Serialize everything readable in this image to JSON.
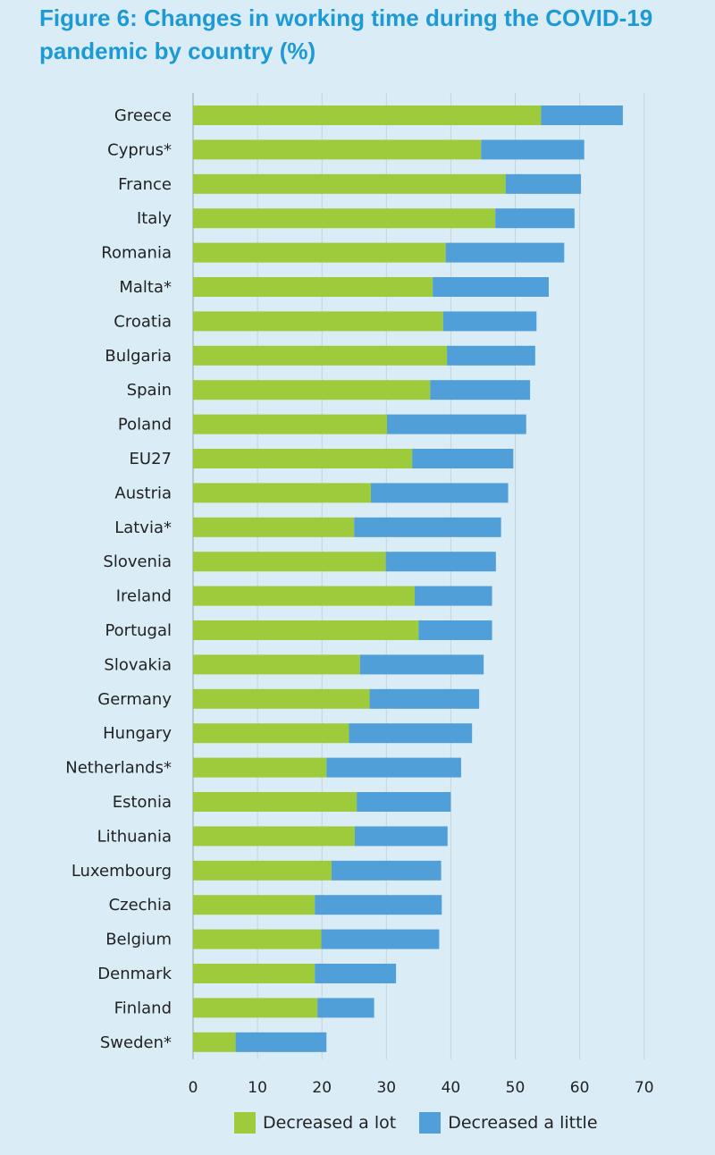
{
  "chart_data": {
    "type": "bar",
    "orientation": "horizontal",
    "stacked": true,
    "title": "Figure 6: Changes in working time during the COVID-19 pandemic by country (%)",
    "categories": [
      "Greece",
      "Cyprus*",
      "France",
      "Italy",
      "Romania",
      "Malta*",
      "Croatia",
      "Bulgaria",
      "Spain",
      "Poland",
      "EU27",
      "Austria",
      "Latvia*",
      "Slovenia",
      "Ireland",
      "Portugal",
      "Slovakia",
      "Germany",
      "Hungary",
      "Netherlands*",
      "Estonia",
      "Lithuania",
      "Luxembourg",
      "Czechia",
      "Belgium",
      "Denmark",
      "Finland",
      "Sweden*"
    ],
    "series": [
      {
        "name": "Decreased a lot",
        "color": "#9dcb3b",
        "values": [
          54,
          44.7,
          48.5,
          46.9,
          39.2,
          37.2,
          38.8,
          39.4,
          36.8,
          30.1,
          34,
          27.6,
          25,
          29.9,
          34.4,
          35,
          25.9,
          27.4,
          24.2,
          20.7,
          25.4,
          25.1,
          21.5,
          18.9,
          19.9,
          18.9,
          19.3,
          6.6
        ]
      },
      {
        "name": "Decreased a little",
        "color": "#509fd8",
        "values": [
          12.7,
          16,
          11.7,
          12.3,
          18.4,
          18,
          14.5,
          13.7,
          15.5,
          21.6,
          15.7,
          21.3,
          22.8,
          17.1,
          12,
          11.4,
          19.2,
          17,
          19.1,
          20.9,
          14.6,
          14.4,
          17,
          19.7,
          18.3,
          12.6,
          8.8,
          14.1
        ]
      }
    ],
    "x_ticks": [
      "0",
      "10",
      "20",
      "30",
      "40",
      "50",
      "60",
      "70"
    ],
    "xlim": [
      0,
      70
    ],
    "grid": "vertical",
    "legend_position": "bottom"
  }
}
